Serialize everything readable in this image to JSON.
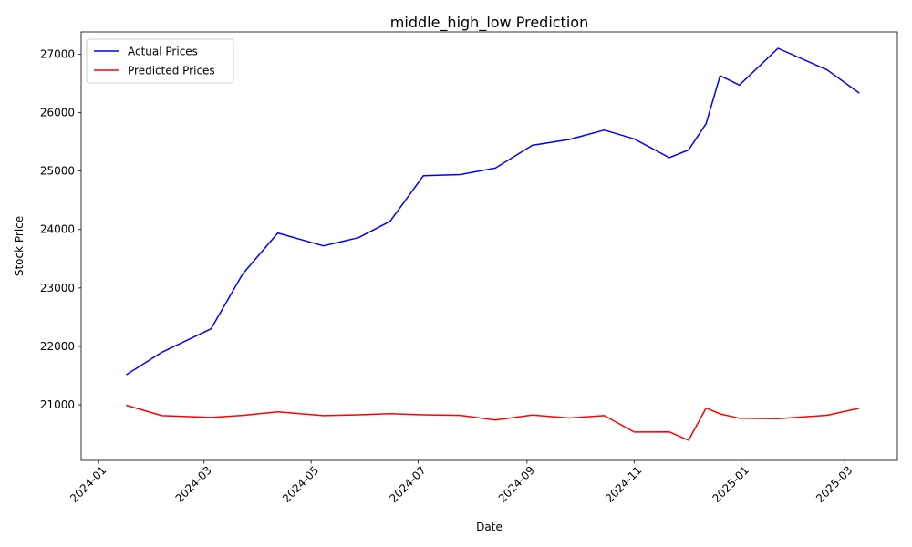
{
  "chart_data": {
    "type": "line",
    "title": "middle_high_low Prediction",
    "xlabel": "Date",
    "ylabel": "Stock Price",
    "x_ticks": [
      "2024-01",
      "2024-03",
      "2024-05",
      "2024-07",
      "2024-09",
      "2024-11",
      "2025-01",
      "2025-03"
    ],
    "y_ticks": [
      "21000",
      "22000",
      "23000",
      "24000",
      "25000",
      "26000",
      "27000"
    ],
    "xlim": [
      "2023-12-22",
      "2025-03-31"
    ],
    "ylim": [
      20050,
      27380
    ],
    "legend_position": "top-left",
    "grid": false,
    "x": [
      "2024-01-17",
      "2024-02-06",
      "2024-03-05",
      "2024-03-23",
      "2024-04-12",
      "2024-05-08",
      "2024-05-28",
      "2024-06-15",
      "2024-07-04",
      "2024-07-25",
      "2024-08-14",
      "2024-09-04",
      "2024-09-25",
      "2024-10-15",
      "2024-11-01",
      "2024-11-21",
      "2024-12-02",
      "2024-12-12",
      "2024-12-20",
      "2024-12-31",
      "2025-01-22",
      "2025-02-19",
      "2025-03-09"
    ],
    "series": [
      {
        "name": "Actual Prices",
        "color": "#0000ff",
        "values": [
          21520,
          21900,
          22300,
          23240,
          23940,
          23720,
          23860,
          24140,
          24920,
          24940,
          25050,
          25440,
          25540,
          25700,
          25550,
          25230,
          25360,
          25810,
          26630,
          26470,
          27100,
          26730,
          26340
        ]
      },
      {
        "name": "Predicted Prices",
        "color": "#ff0000",
        "values": [
          20990,
          20815,
          20785,
          20820,
          20880,
          20815,
          20830,
          20848,
          20830,
          20820,
          20740,
          20825,
          20775,
          20815,
          20535,
          20538,
          20395,
          20945,
          20845,
          20770,
          20765,
          20822,
          20940
        ]
      }
    ]
  }
}
